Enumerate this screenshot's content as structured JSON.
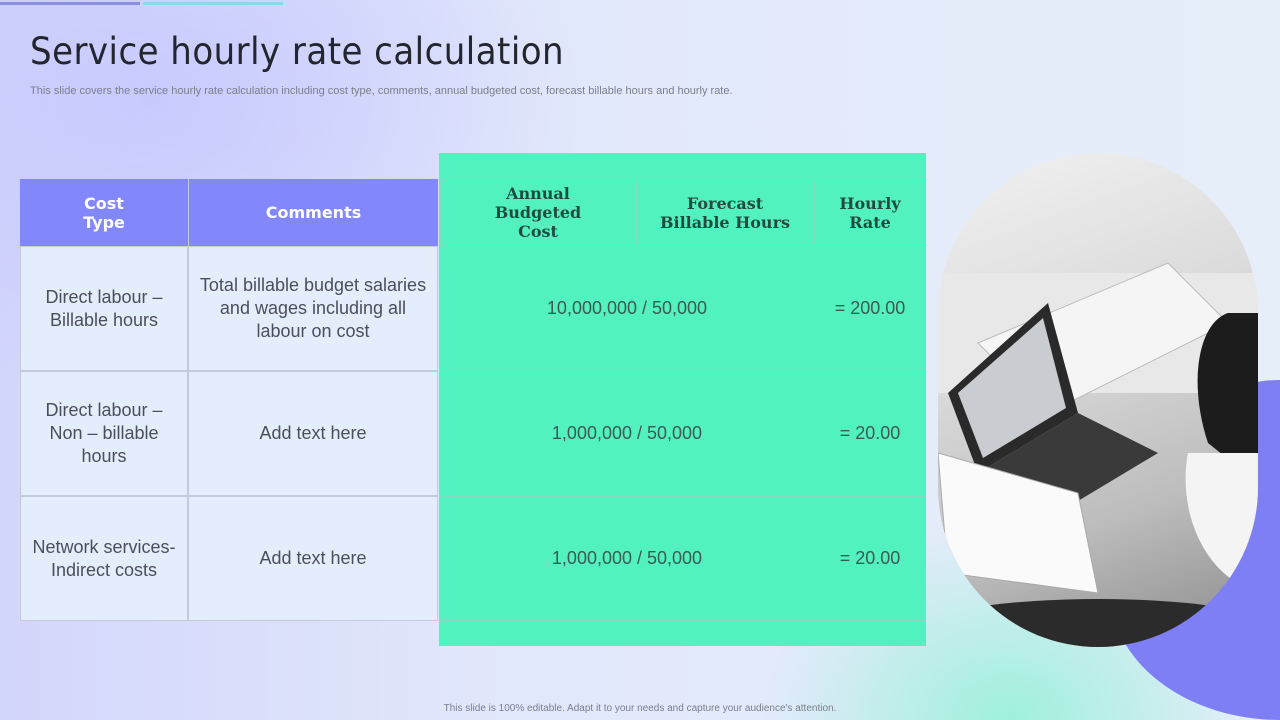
{
  "title": "Service hourly rate calculation",
  "subtitle": "This slide covers the service hourly rate calculation including cost type, comments, annual budgeted cost, forecast billable hours and hourly rate.",
  "footer": "This slide is 100% editable. Adapt it to your needs and capture your audience's attention.",
  "colors": {
    "header_purple": "#8387fc",
    "panel_green": "#52f2c0",
    "accent_purple": "#7f7ff5"
  },
  "table": {
    "headers": [
      "Cost Type",
      "Comments",
      "Annual Budgeted Cost",
      "Forecast Billable Hours",
      "Hourly Rate"
    ],
    "rows": [
      {
        "cost_type": "Direct labour – Billable hours",
        "comments": "Total billable budget salaries and wages including all labour on cost",
        "calculation": "10,000,000 / 50,000",
        "rate": "= 200.00"
      },
      {
        "cost_type": "Direct labour – Non – billable hours",
        "comments": "Add text here",
        "calculation": "1,000,000 / 50,000",
        "rate": "= 20.00"
      },
      {
        "cost_type": "Network services- Indirect costs",
        "comments": "Add text here",
        "calculation": "1,000,000 / 50,000",
        "rate": "= 20.00"
      }
    ]
  },
  "image": {
    "subject": "woman-working-on-laptop-photo"
  }
}
